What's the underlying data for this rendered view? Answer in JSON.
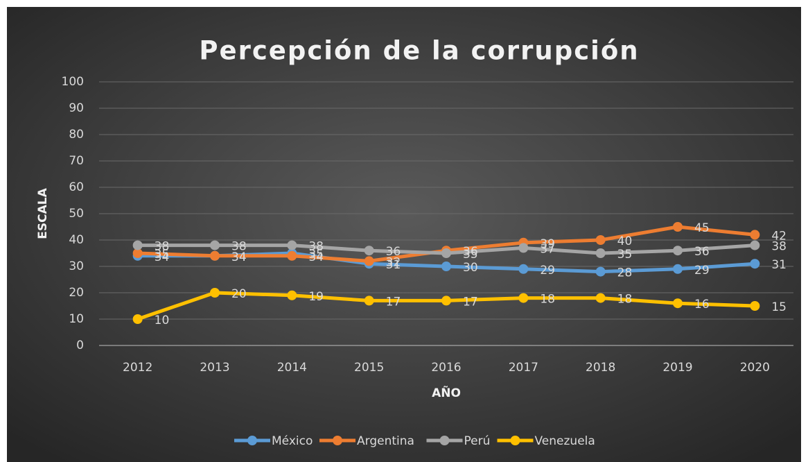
{
  "chart_data": {
    "type": "line",
    "title": "Percepción de la corrupción",
    "x_label": "AÑO",
    "y_label": "ESCALA",
    "categories": [
      "2012",
      "2013",
      "2014",
      "2015",
      "2016",
      "2017",
      "2018",
      "2019",
      "2020"
    ],
    "series": [
      {
        "name": "México",
        "color": "#5b9bd5",
        "values": [
          34,
          34,
          35,
          31,
          30,
          29,
          28,
          29,
          31
        ]
      },
      {
        "name": "Argentina",
        "color": "#ed7d31",
        "values": [
          35,
          34,
          34,
          32,
          36,
          39,
          40,
          45,
          42
        ]
      },
      {
        "name": "Perú",
        "color": "#a5a5a5",
        "values": [
          38,
          38,
          38,
          36,
          35,
          37,
          35,
          36,
          38
        ]
      },
      {
        "name": "Venezuela",
        "color": "#ffc000",
        "values": [
          10,
          20,
          19,
          17,
          17,
          18,
          18,
          16,
          15
        ]
      }
    ],
    "ylim": [
      0,
      100
    ],
    "yticks": [
      0,
      10,
      20,
      30,
      40,
      50,
      60,
      70,
      80,
      90,
      100
    ],
    "grid": true,
    "legend": "bottom"
  }
}
